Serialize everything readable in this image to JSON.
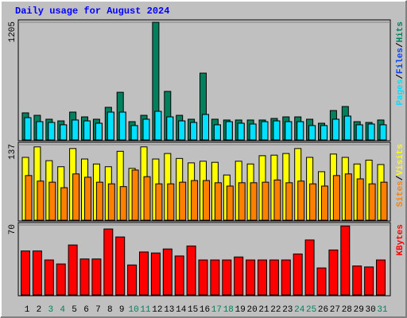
{
  "chart_data": [
    {
      "type": "bar",
      "title": "Daily usage for August 2024",
      "ylim": [
        0,
        1205
      ],
      "yticks": [
        1205
      ],
      "series": [
        {
          "name": "Hits",
          "color": "#00805c",
          "values": [
            277,
            252,
            212,
            195,
            285,
            236,
            212,
            334,
            488,
            187,
            252,
            1205,
            497,
            252,
            212,
            684,
            212,
            204,
            204,
            204,
            204,
            220,
            236,
            236,
            212,
            171,
            301,
            342,
            187,
            179,
            204
          ]
        },
        {
          "name": "Files",
          "color": "#0040ff",
          "values": [
            228,
            187,
            179,
            155,
            204,
            195,
            171,
            285,
            285,
            147,
            212,
            293,
            236,
            195,
            179,
            261,
            155,
            187,
            171,
            163,
            187,
            195,
            187,
            187,
            147,
            147,
            212,
            244,
            155,
            163,
            155
          ]
        },
        {
          "name": "Pages",
          "color": "#00e0ff",
          "values": [
            228,
            187,
            179,
            155,
            204,
            195,
            171,
            285,
            285,
            147,
            212,
            293,
            236,
            195,
            179,
            261,
            155,
            187,
            171,
            163,
            187,
            195,
            187,
            187,
            147,
            147,
            212,
            244,
            155,
            163,
            155
          ]
        }
      ]
    },
    {
      "type": "bar",
      "ylim": [
        0,
        137
      ],
      "yticks": [
        137
      ],
      "series": [
        {
          "name": "Visits",
          "color": "#ffff00",
          "values": [
            114,
            133,
            108,
            97,
            130,
            111,
            102,
            97,
            125,
            94,
            133,
            111,
            121,
            112,
            104,
            107,
            105,
            82,
            107,
            102,
            117,
            118,
            121,
            130,
            114,
            88,
            120,
            114,
            102,
            109,
            101
          ]
        },
        {
          "name": "Sites",
          "color": "#ff8000",
          "values": [
            81,
            71,
            69,
            59,
            84,
            78,
            69,
            66,
            61,
            91,
            79,
            66,
            66,
            69,
            72,
            72,
            68,
            62,
            68,
            68,
            69,
            73,
            68,
            71,
            66,
            62,
            81,
            84,
            75,
            66,
            69
          ]
        }
      ]
    },
    {
      "type": "bar",
      "ylim": [
        0,
        70
      ],
      "yticks": [
        70
      ],
      "categories": [
        "1",
        "2",
        "3",
        "4",
        "5",
        "6",
        "7",
        "8",
        "9",
        "10",
        "11",
        "12",
        "13",
        "14",
        "15",
        "16",
        "17",
        "18",
        "19",
        "20",
        "21",
        "22",
        "23",
        "24",
        "25",
        "26",
        "27",
        "28",
        "29",
        "30",
        "31"
      ],
      "category_colors": [
        "#000000",
        "#000000",
        "#00805c",
        "#00805c",
        "#000000",
        "#000000",
        "#000000",
        "#000000",
        "#000000",
        "#00805c",
        "#00805c",
        "#000000",
        "#000000",
        "#000000",
        "#000000",
        "#000000",
        "#00805c",
        "#00805c",
        "#000000",
        "#000000",
        "#000000",
        "#000000",
        "#000000",
        "#00805c",
        "#00805c",
        "#000000",
        "#000000",
        "#000000",
        "#000000",
        "#000000",
        "#00805c"
      ],
      "series": [
        {
          "name": "KBytes",
          "color": "#ff0000",
          "values": [
            44,
            44,
            35,
            31,
            50,
            36,
            36,
            66,
            58,
            30,
            43,
            42,
            46,
            39,
            49,
            35,
            35,
            35,
            38,
            35,
            35,
            35,
            35,
            41,
            55,
            27,
            45,
            69,
            29,
            28,
            35
          ]
        }
      ]
    }
  ]
}
